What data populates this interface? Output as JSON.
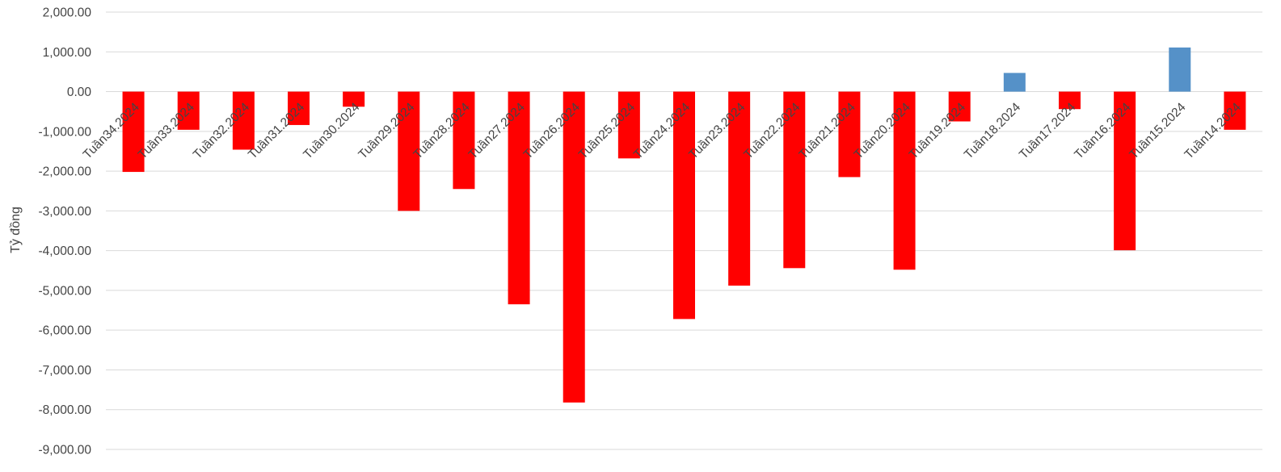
{
  "chart_data": {
    "type": "bar",
    "title": "",
    "xlabel": "",
    "ylabel": "Tỷ đồng",
    "ylim": [
      -9000,
      2000
    ],
    "yticks": [
      2000,
      1000,
      0,
      -1000,
      -2000,
      -3000,
      -4000,
      -5000,
      -6000,
      -7000,
      -8000,
      -9000
    ],
    "ytick_labels": [
      "2,000.00",
      "1,000.00",
      "0.00",
      "-1,000.00",
      "-2,000.00",
      "-3,000.00",
      "-4,000.00",
      "-5,000.00",
      "-6,000.00",
      "-7,000.00",
      "-8,000.00",
      "-9,000.00"
    ],
    "grid": true,
    "legend": "none",
    "colors": {
      "negative": "#ff0000",
      "positive": "#5591c8",
      "grid": "#d9d9d9",
      "text": "#444444"
    },
    "categories": [
      "Tuần34.2024",
      "Tuần33.2024",
      "Tuần32.2024",
      "Tuần31.2024",
      "Tuần30.2024",
      "Tuần29.2024",
      "Tuần28.2024",
      "Tuần27.2024",
      "Tuần26.2024",
      "Tuần25.2024",
      "Tuần24.2024",
      "Tuần23.2024",
      "Tuần22.2024",
      "Tuần21.2024",
      "Tuần20.2024",
      "Tuần19.2024",
      "Tuần18.2024",
      "Tuần17.2024",
      "Tuần16.2024",
      "Tuần15.2024",
      "Tuần14.2024"
    ],
    "values": [
      -2020,
      -960,
      -1460,
      -840,
      -380,
      -3000,
      -2450,
      -5350,
      -7820,
      -1680,
      -5720,
      -4880,
      -4440,
      -2150,
      -4480,
      -750,
      470,
      -440,
      -3990,
      1110,
      -960
    ]
  }
}
